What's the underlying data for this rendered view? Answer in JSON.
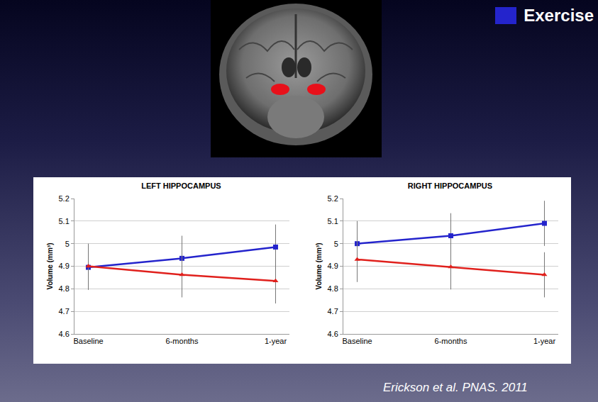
{
  "chart_data": [
    {
      "type": "line",
      "title": "LEFT HIPPOCAMPUS",
      "y_label": "Volume (mm³)",
      "categories": [
        "Baseline",
        "6-months",
        "1-year"
      ],
      "series": [
        {
          "name": "Exercise",
          "color": "#2424cc",
          "marker": "square",
          "values": [
            4.895,
            4.935,
            4.985
          ],
          "errors": [
            0.1,
            0.1,
            0.1
          ]
        },
        {
          "color": "#e0201c",
          "marker": "triangle",
          "values": [
            4.9,
            4.862,
            4.835
          ],
          "errors": [
            0.1,
            0.1,
            0.1
          ]
        }
      ],
      "ylim": [
        4.6,
        5.2
      ],
      "yticks": [
        4.6,
        4.7,
        4.8,
        4.9,
        5,
        5.1,
        5.2
      ],
      "grid": true,
      "legend": "top right"
    },
    {
      "type": "line",
      "title": "RIGHT HIPPOCAMPUS",
      "y_label": "Volume (mm³)",
      "categories": [
        "Baseline",
        "6-months",
        "1-year"
      ],
      "series": [
        {
          "name": "Exercise",
          "color": "#2424cc",
          "marker": "square",
          "values": [
            5.0,
            5.035,
            5.09
          ],
          "errors": [
            0.1,
            0.1,
            0.1
          ]
        },
        {
          "color": "#e0201c",
          "marker": "triangle",
          "values": [
            4.93,
            4.897,
            4.862
          ],
          "errors": [
            0.1,
            0.1,
            0.1
          ]
        }
      ],
      "ylim": [
        4.6,
        5.2
      ],
      "yticks": [
        4.6,
        4.7,
        4.8,
        4.9,
        5,
        5.1,
        5.2
      ],
      "grid": true,
      "legend": "top right"
    }
  ],
  "caption": "Erickson et al. PNAS. 2011"
}
